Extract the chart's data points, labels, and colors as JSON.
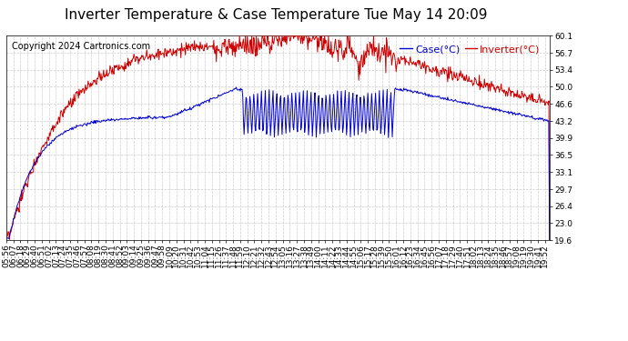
{
  "title": "Inverter Temperature & Case Temperature Tue May 14 20:09",
  "copyright": "Copyright 2024 Cartronics.com",
  "legend_case": "Case(°C)",
  "legend_inverter": "Inverter(°C)",
  "yticks": [
    19.6,
    23.0,
    26.4,
    29.7,
    33.1,
    36.5,
    39.9,
    43.2,
    46.6,
    50.0,
    53.4,
    56.7,
    60.1
  ],
  "ymin": 19.6,
  "ymax": 60.1,
  "case_color": "#0000cc",
  "inverter_color": "#cc0000",
  "background_color": "#ffffff",
  "grid_color": "#cccccc",
  "title_fontsize": 11,
  "copyright_fontsize": 7,
  "legend_fontsize": 8,
  "tick_fontsize": 6.5
}
